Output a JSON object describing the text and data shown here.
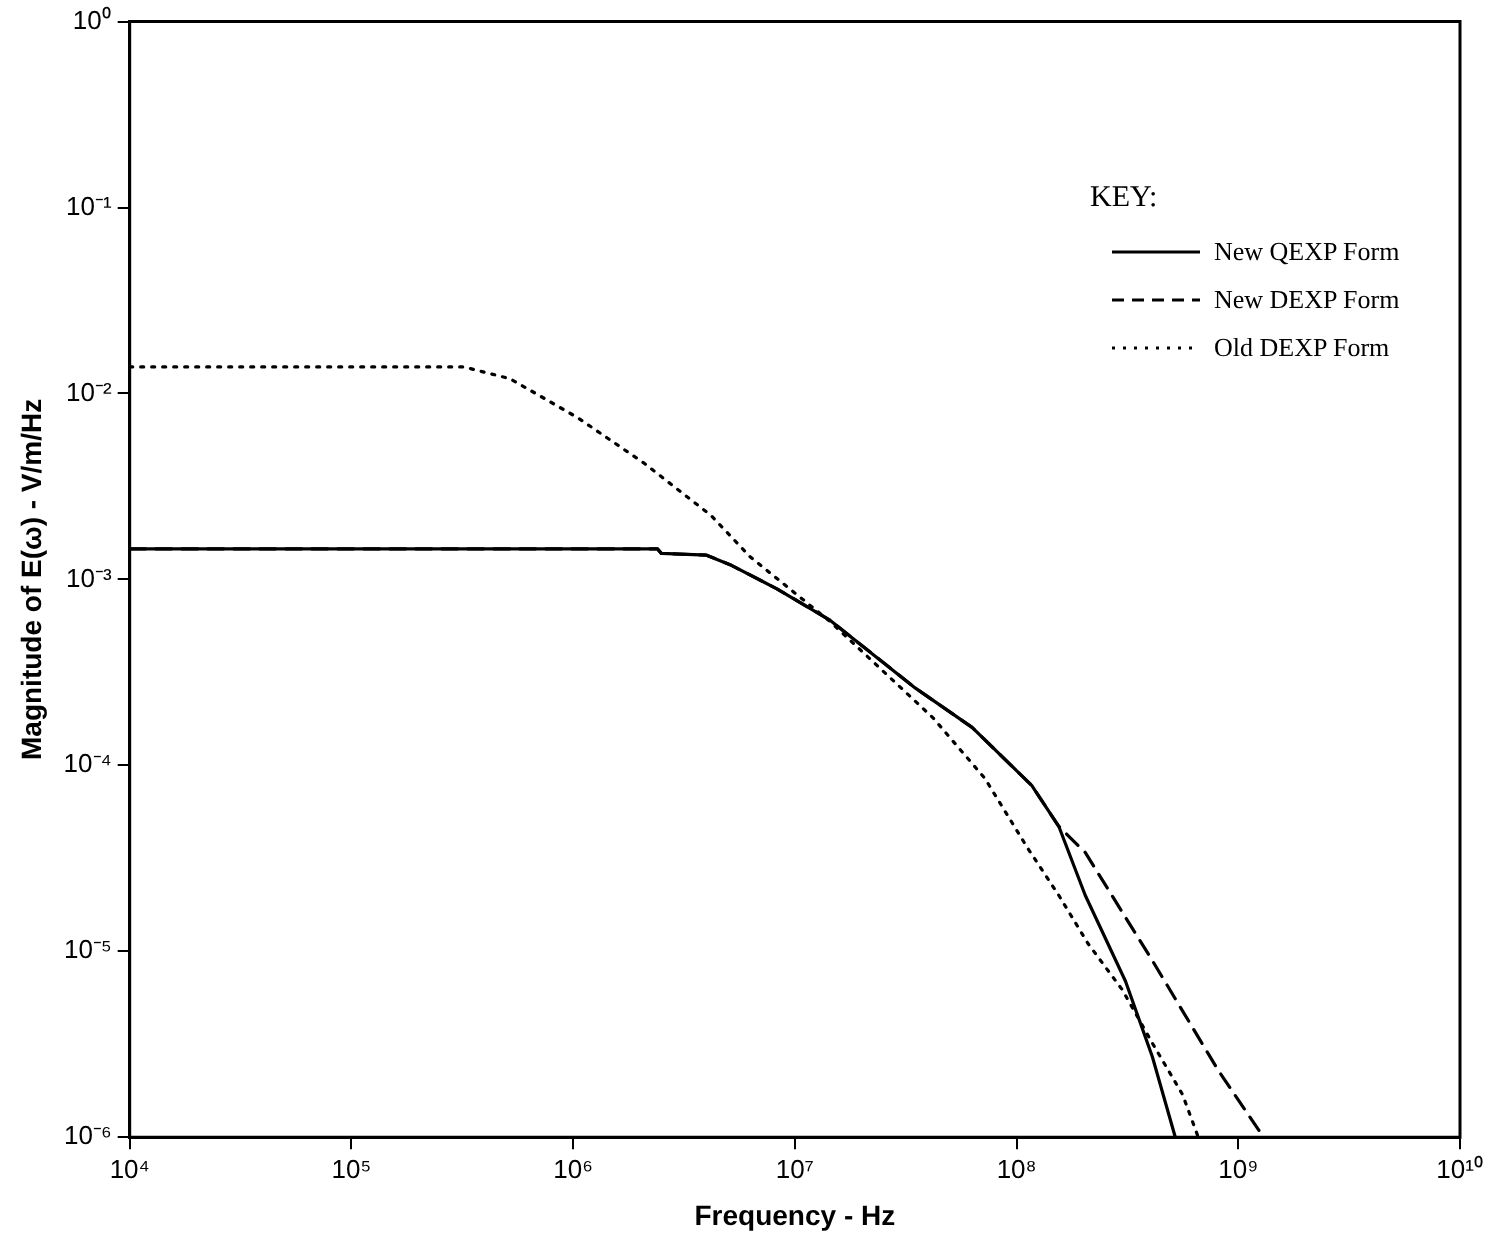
{
  "chart_data": {
    "type": "line",
    "xlabel": "Frequency - Hz",
    "ylabel": "Magnitude of E(ω) - V/m/Hz",
    "legend_title": "KEY:",
    "legend": "top right",
    "log": "xy",
    "grid": false,
    "marker": "none",
    "xlim": [
      10000.0,
      10000000000.0
    ],
    "ylim": [
      1e-06,
      1
    ],
    "xticks": [
      {
        "value": 10000.0,
        "label": "10⁴"
      },
      {
        "value": 100000.0,
        "label": "10⁵"
      },
      {
        "value": 1000000.0,
        "label": "10⁶"
      },
      {
        "value": 10000000.0,
        "label": "10⁷"
      },
      {
        "value": 100000000.0,
        "label": "10⁸"
      },
      {
        "value": 1000000000.0,
        "label": "10⁹"
      },
      {
        "value": 10000000000.0,
        "label": "10¹⁰"
      }
    ],
    "yticks": [
      {
        "value": 1e-06,
        "label": "10⁻⁶"
      },
      {
        "value": 1e-05,
        "label": "10⁻⁵"
      },
      {
        "value": 0.0001,
        "label": "10⁻⁴"
      },
      {
        "value": 0.001,
        "label": "10⁻³"
      },
      {
        "value": 0.01,
        "label": "10⁻²"
      },
      {
        "value": 0.1,
        "label": "10⁻¹"
      },
      {
        "value": 1,
        "label": "10⁰"
      }
    ],
    "series": [
      {
        "name": "New QEXP Form",
        "color": "#000000",
        "line_style": "solid",
        "x": [
          10000.0,
          2400000.0,
          2500000.0,
          4000000.0,
          5100000.0,
          8300000.0,
          14500000.0,
          35000000.0,
          63000000.0,
          117000000.0,
          155000000.0,
          204000000.0,
          310000000.0,
          410000000.0,
          520000000.0
        ],
        "values": [
          0.00146,
          0.00146,
          0.00138,
          0.00135,
          0.0012,
          0.00089,
          0.0006,
          0.00026,
          0.00016,
          7.8e-05,
          4.7e-05,
          2e-05,
          6.9e-06,
          2.7e-06,
          1e-06
        ]
      },
      {
        "name": "New DEXP Form",
        "color": "#000000",
        "line_style": "dashed",
        "x": [
          10000.0,
          2400000.0,
          2500000.0,
          4000000.0,
          5100000.0,
          8300000.0,
          14500000.0,
          35000000.0,
          63000000.0,
          117000000.0,
          155000000.0,
          204000000.0,
          410000000.0,
          810000000.0,
          1300000000.0
        ],
        "values": [
          0.00146,
          0.00146,
          0.00138,
          0.00135,
          0.0012,
          0.00089,
          0.0006,
          0.00026,
          0.00016,
          7.8e-05,
          4.7e-05,
          3.4e-05,
          8.9e-06,
          2.3e-06,
          1e-06
        ]
      },
      {
        "name": "Old DEXP Form",
        "color": "#000000",
        "line_style": "dotted",
        "x": [
          10000.0,
          320000.0,
          520000.0,
          1050000.0,
          2100000.0,
          4200000.0,
          6300000.0,
          14500000.0,
          42000000.0,
          72000000.0,
          112000000.0,
          155000000.0,
          210000000.0,
          300000000.0,
          410000000.0,
          560000000.0,
          660000000.0
        ],
        "values": [
          0.0139,
          0.0139,
          0.012,
          0.0074,
          0.0042,
          0.0022,
          0.00132,
          0.00059,
          0.00018,
          8.5e-05,
          3.6e-05,
          2e-05,
          1.1e-05,
          6.2e-06,
          3.2e-06,
          1.7e-06,
          1e-06
        ]
      }
    ]
  }
}
